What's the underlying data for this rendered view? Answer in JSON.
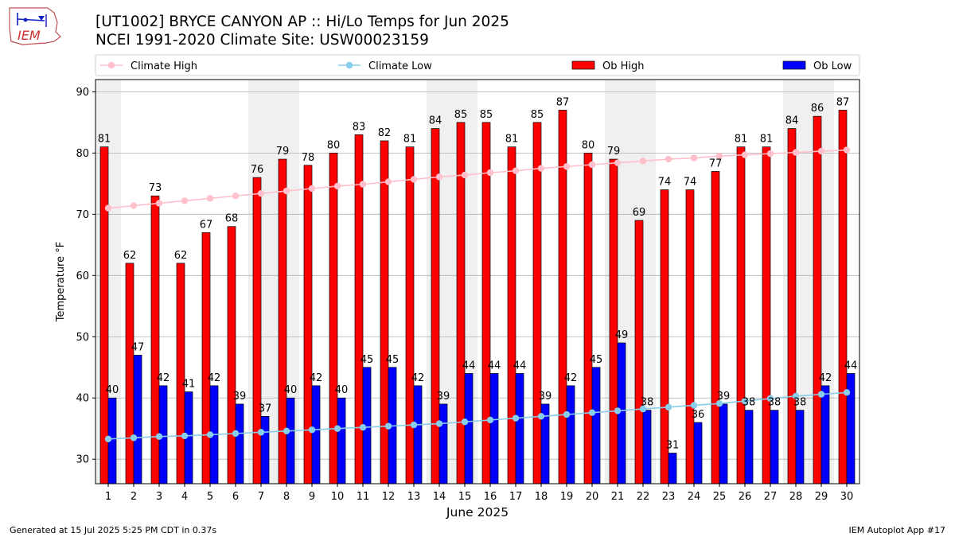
{
  "title_line1": "[UT1002] BRYCE CANYON AP :: Hi/Lo Temps for Jun 2025",
  "title_line2": "NCEI 1991-2020 Climate Site: USW00023159",
  "logo_text": "IEM",
  "footer_left": "Generated at 15 Jul 2025 5:25 PM CDT in 0.37s",
  "footer_right": "IEM Autoplot App #17",
  "colors": {
    "ob_high": "#ff0000",
    "ob_low": "#0000ff",
    "climate_high": "#ffc0cb",
    "climate_low": "#87ceeb",
    "weekend_shade": "#f0f0f0"
  },
  "chart_data": {
    "type": "bar",
    "xlabel": "June 2025",
    "ylabel": "Temperature °F",
    "ylim": [
      26,
      92
    ],
    "yticks": [
      30,
      40,
      50,
      60,
      70,
      80,
      90
    ],
    "grid": true,
    "legend_position": "top",
    "categories": [
      "1",
      "2",
      "3",
      "4",
      "5",
      "6",
      "7",
      "8",
      "9",
      "10",
      "11",
      "12",
      "13",
      "14",
      "15",
      "16",
      "17",
      "18",
      "19",
      "20",
      "21",
      "22",
      "23",
      "24",
      "25",
      "26",
      "27",
      "28",
      "29",
      "30"
    ],
    "shaded_days": [
      "1",
      "7",
      "8",
      "14",
      "15",
      "21",
      "22",
      "28",
      "29"
    ],
    "series": [
      {
        "name": "Climate High",
        "kind": "line",
        "values": [
          71.0,
          71.4,
          71.8,
          72.2,
          72.6,
          73.0,
          73.4,
          73.8,
          74.2,
          74.6,
          74.9,
          75.3,
          75.7,
          76.1,
          76.4,
          76.8,
          77.1,
          77.5,
          77.8,
          78.1,
          78.4,
          78.7,
          79.0,
          79.2,
          79.5,
          79.7,
          79.9,
          80.1,
          80.3,
          80.5
        ]
      },
      {
        "name": "Climate Low",
        "kind": "line",
        "values": [
          33.3,
          33.5,
          33.7,
          33.8,
          34.0,
          34.2,
          34.4,
          34.6,
          34.8,
          35.0,
          35.2,
          35.4,
          35.6,
          35.8,
          36.1,
          36.4,
          36.7,
          37.0,
          37.3,
          37.6,
          37.9,
          38.2,
          38.5,
          38.8,
          39.1,
          39.5,
          39.9,
          40.3,
          40.6,
          40.9
        ]
      },
      {
        "name": "Ob High",
        "kind": "bar",
        "values": [
          81,
          62,
          73,
          62,
          67,
          68,
          76,
          79,
          78,
          80,
          83,
          82,
          81,
          84,
          85,
          85,
          81,
          85,
          87,
          80,
          79,
          69,
          74,
          74,
          77,
          81,
          81,
          84,
          86,
          87
        ]
      },
      {
        "name": "Ob Low",
        "kind": "bar",
        "values": [
          40,
          47,
          42,
          41,
          42,
          39,
          37,
          40,
          42,
          40,
          45,
          45,
          42,
          39,
          44,
          44,
          44,
          39,
          42,
          45,
          49,
          38,
          31,
          36,
          39,
          38,
          38,
          38,
          42,
          44
        ]
      }
    ]
  }
}
